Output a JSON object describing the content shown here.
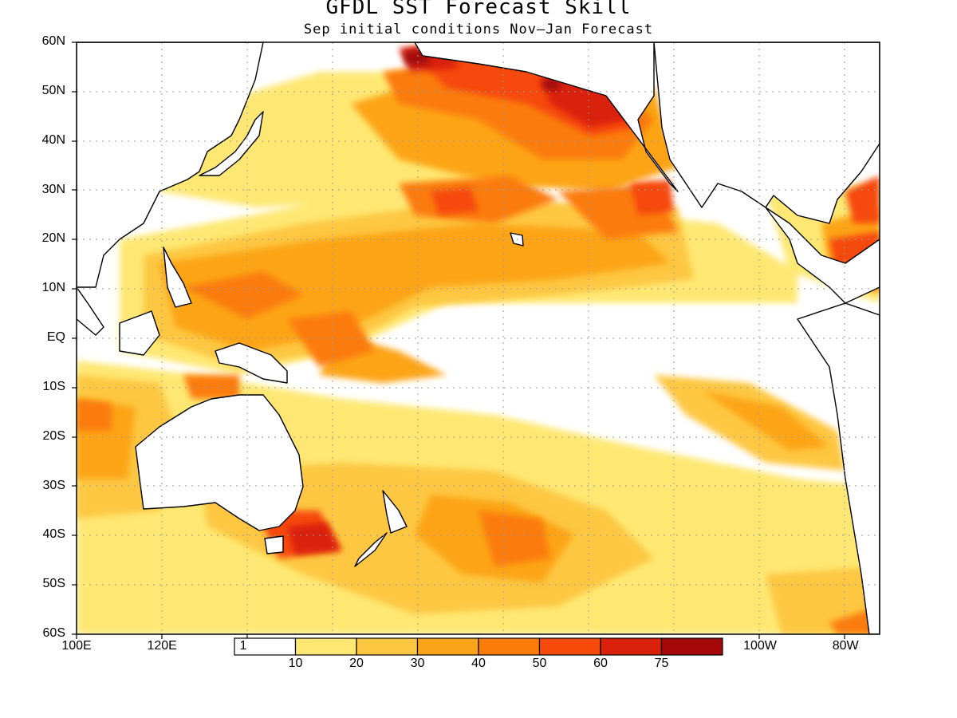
{
  "title": "GFDL SST Forecast Skill",
  "subtitle": "Sep initial conditions  Nov–Jan Forecast",
  "map": {
    "type": "contour-map",
    "region": "Pacific Ocean",
    "lat_range": [
      -60,
      60
    ],
    "lon_range": [
      100,
      288
    ],
    "grid": true,
    "lat_labels": [
      "60N",
      "50N",
      "40N",
      "30N",
      "20N",
      "10N",
      "EQ",
      "10S",
      "20S",
      "30S",
      "40S",
      "50S",
      "60S"
    ],
    "lon_labels": [
      {
        "text": "100E",
        "lon": 100
      },
      {
        "text": "120E",
        "lon": 120
      },
      {
        "text": "1",
        "lon": 139
      },
      {
        "text": "100W",
        "lon": 260
      },
      {
        "text": "80W",
        "lon": 280
      }
    ],
    "legend": {
      "placement": "bottom-center",
      "labels": [
        "10",
        "20",
        "30",
        "40",
        "50",
        "60",
        "75"
      ],
      "colors": [
        "#ffffff",
        "#fee873",
        "#fdc742",
        "#fca419",
        "#fb7c08",
        "#f64a0b",
        "#d9210b",
        "#a40808"
      ]
    },
    "land_color": "#ffffff",
    "coast_color": "#000000"
  }
}
